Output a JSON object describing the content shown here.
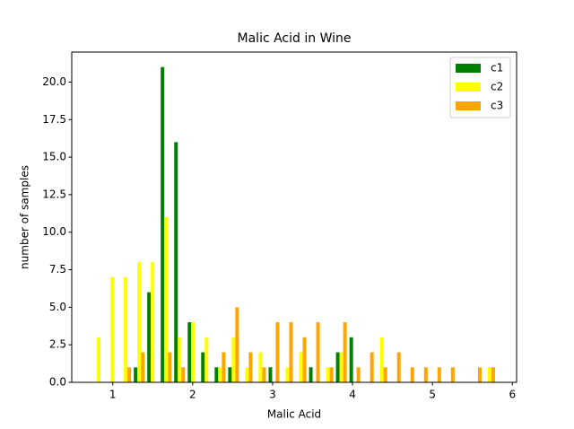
{
  "chart_data": {
    "type": "histogram",
    "title": "Malic Acid in Wine",
    "x_label": "Malic Acid",
    "y_label": "number of samples",
    "bins": [
      0.74,
      0.909,
      1.077,
      1.246,
      1.415,
      1.583,
      1.752,
      1.921,
      2.089,
      2.258,
      2.427,
      2.595,
      2.764,
      2.933,
      3.101,
      3.27,
      3.439,
      3.607,
      3.776,
      3.945,
      4.113,
      4.282,
      4.451,
      4.619,
      4.788,
      4.957,
      5.125,
      5.294,
      5.463,
      5.631,
      5.8
    ],
    "series": [
      {
        "name": "c1",
        "color": "#008000",
        "values": [
          0,
          0,
          0,
          1,
          6,
          21,
          16,
          4,
          2,
          1,
          1,
          0,
          0,
          1,
          0,
          0,
          1,
          0,
          2,
          3,
          0,
          0,
          0,
          0,
          0,
          0,
          0,
          0,
          0,
          0
        ]
      },
      {
        "name": "c2",
        "color": "#ffff00",
        "values": [
          3,
          7,
          7,
          8,
          8,
          11,
          3,
          4,
          3,
          1,
          3,
          1,
          2,
          0,
          1,
          2,
          0,
          1,
          2,
          0,
          0,
          3,
          0,
          0,
          0,
          0,
          0,
          0,
          0,
          1
        ]
      },
      {
        "name": "c3",
        "color": "#ffa500",
        "values": [
          0,
          0,
          1,
          2,
          0,
          2,
          1,
          0,
          0,
          2,
          5,
          2,
          1,
          4,
          4,
          3,
          4,
          1,
          4,
          1,
          2,
          1,
          2,
          1,
          1,
          1,
          1,
          0,
          1,
          1
        ]
      }
    ],
    "xlim": [
      0.487,
      6.053
    ],
    "xticks": [
      1,
      2,
      3,
      4,
      5,
      6
    ],
    "ylim": [
      0,
      22
    ],
    "yticks": [
      {
        "value": 0,
        "label": "0.0"
      },
      {
        "value": 2.5,
        "label": "2.5"
      },
      {
        "value": 5,
        "label": "5.0"
      },
      {
        "value": 7.5,
        "label": "7.5"
      },
      {
        "value": 10,
        "label": "10.0"
      },
      {
        "value": 12.5,
        "label": "12.5"
      },
      {
        "value": 15,
        "label": "15.0"
      },
      {
        "value": 17.5,
        "label": "17.5"
      },
      {
        "value": 20,
        "label": "20.0"
      }
    ],
    "legend": "upper right"
  }
}
